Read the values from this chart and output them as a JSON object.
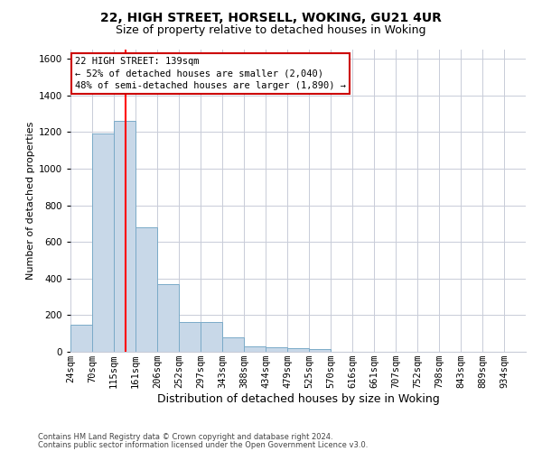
{
  "title_line1": "22, HIGH STREET, HORSELL, WOKING, GU21 4UR",
  "title_line2": "Size of property relative to detached houses in Woking",
  "xlabel": "Distribution of detached houses by size in Woking",
  "ylabel": "Number of detached properties",
  "bin_labels": [
    "24sqm",
    "70sqm",
    "115sqm",
    "161sqm",
    "206sqm",
    "252sqm",
    "297sqm",
    "343sqm",
    "388sqm",
    "434sqm",
    "479sqm",
    "525sqm",
    "570sqm",
    "616sqm",
    "661sqm",
    "707sqm",
    "752sqm",
    "798sqm",
    "843sqm",
    "889sqm",
    "934sqm"
  ],
  "bar_heights": [
    150,
    1190,
    1260,
    680,
    370,
    165,
    165,
    80,
    30,
    25,
    20,
    15,
    0,
    0,
    0,
    0,
    0,
    0,
    0,
    0,
    0
  ],
  "bar_color": "#c8d8e8",
  "bar_edge_color": "#7aaac8",
  "ylim": [
    0,
    1650
  ],
  "yticks": [
    0,
    200,
    400,
    600,
    800,
    1000,
    1200,
    1400,
    1600
  ],
  "annotation_title": "22 HIGH STREET: 139sqm",
  "annotation_line1": "← 52% of detached houses are smaller (2,040)",
  "annotation_line2": "48% of semi-detached houses are larger (1,890) →",
  "annotation_box_color": "#ffffff",
  "annotation_box_edge": "#cc0000",
  "footer1": "Contains HM Land Registry data © Crown copyright and database right 2024.",
  "footer2": "Contains public sector information licensed under the Open Government Licence v3.0.",
  "bg_color": "#ffffff",
  "grid_color": "#c8ccd8",
  "title_fontsize": 10,
  "subtitle_fontsize": 9,
  "ylabel_fontsize": 8,
  "xlabel_fontsize": 9,
  "tick_fontsize": 7.5,
  "footer_fontsize": 6,
  "ann_fontsize": 7.5
}
